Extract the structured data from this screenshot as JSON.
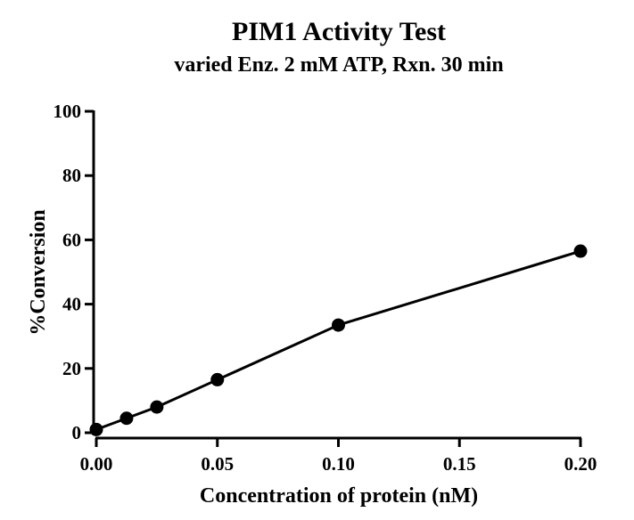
{
  "chart_data": {
    "type": "line",
    "title": "PIM1 Activity Test",
    "subtitle": "varied Enz. 2 mM ATP, Rxn. 30 min",
    "xlabel": "Concentration of protein (nM)",
    "ylabel": "%Conversion",
    "xlim": [
      0,
      0.2
    ],
    "ylim": [
      0,
      100
    ],
    "x_ticks": [
      "0.00",
      "0.05",
      "0.10",
      "0.15",
      "0.20"
    ],
    "y_ticks": [
      "0",
      "20",
      "40",
      "60",
      "80",
      "100"
    ],
    "grid": false,
    "series": [
      {
        "name": "PIM1",
        "x": [
          0,
          0.0125,
          0.025,
          0.05,
          0.1,
          0.2
        ],
        "y": [
          1,
          4.5,
          8,
          16.5,
          33.5,
          56.5
        ]
      }
    ]
  }
}
